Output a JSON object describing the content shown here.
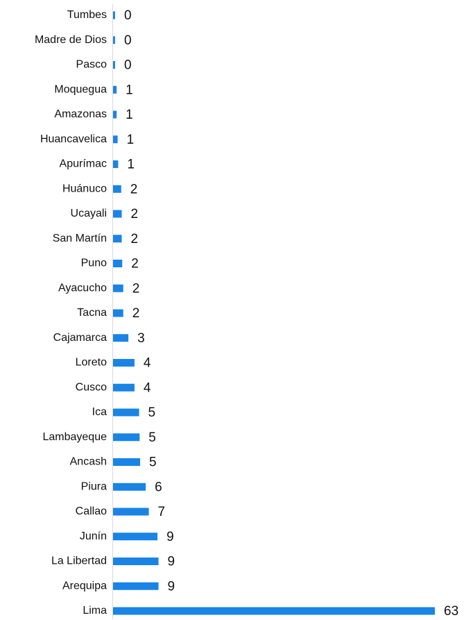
{
  "chart_data": {
    "type": "bar",
    "orientation": "horizontal",
    "color": "#1a84e6",
    "categories": [
      "Tumbes",
      "Madre de Dios",
      "Pasco",
      "Moquegua",
      "Amazonas",
      "Huancavelica",
      "Apurímac",
      "Huánuco",
      "Ucayali",
      "San Martín",
      "Puno",
      "Ayacucho",
      "Tacna",
      "Cajamarca",
      "Loreto",
      "Cusco",
      "Ica",
      "Lambayeque",
      "Ancash",
      "Piura",
      "Callao",
      "Junín",
      "La Libertad",
      "Arequipa",
      "Lima"
    ],
    "values": [
      0.4,
      0.4,
      0.4,
      0.7,
      0.7,
      0.9,
      1.0,
      1.6,
      1.7,
      1.7,
      1.8,
      2.0,
      2.0,
      3.0,
      4.2,
      4.2,
      5.1,
      5.2,
      5.3,
      6.4,
      7.0,
      8.7,
      8.9,
      8.9,
      63
    ],
    "value_labels": [
      "0",
      "0",
      "0",
      "1",
      "1",
      "1",
      "1",
      "2",
      "2",
      "2",
      "2",
      "2",
      "2",
      "3",
      "4",
      "4",
      "5",
      "5",
      "5",
      "6",
      "7",
      "9",
      "9",
      "9",
      "63"
    ],
    "xlim": [
      0,
      63
    ]
  }
}
